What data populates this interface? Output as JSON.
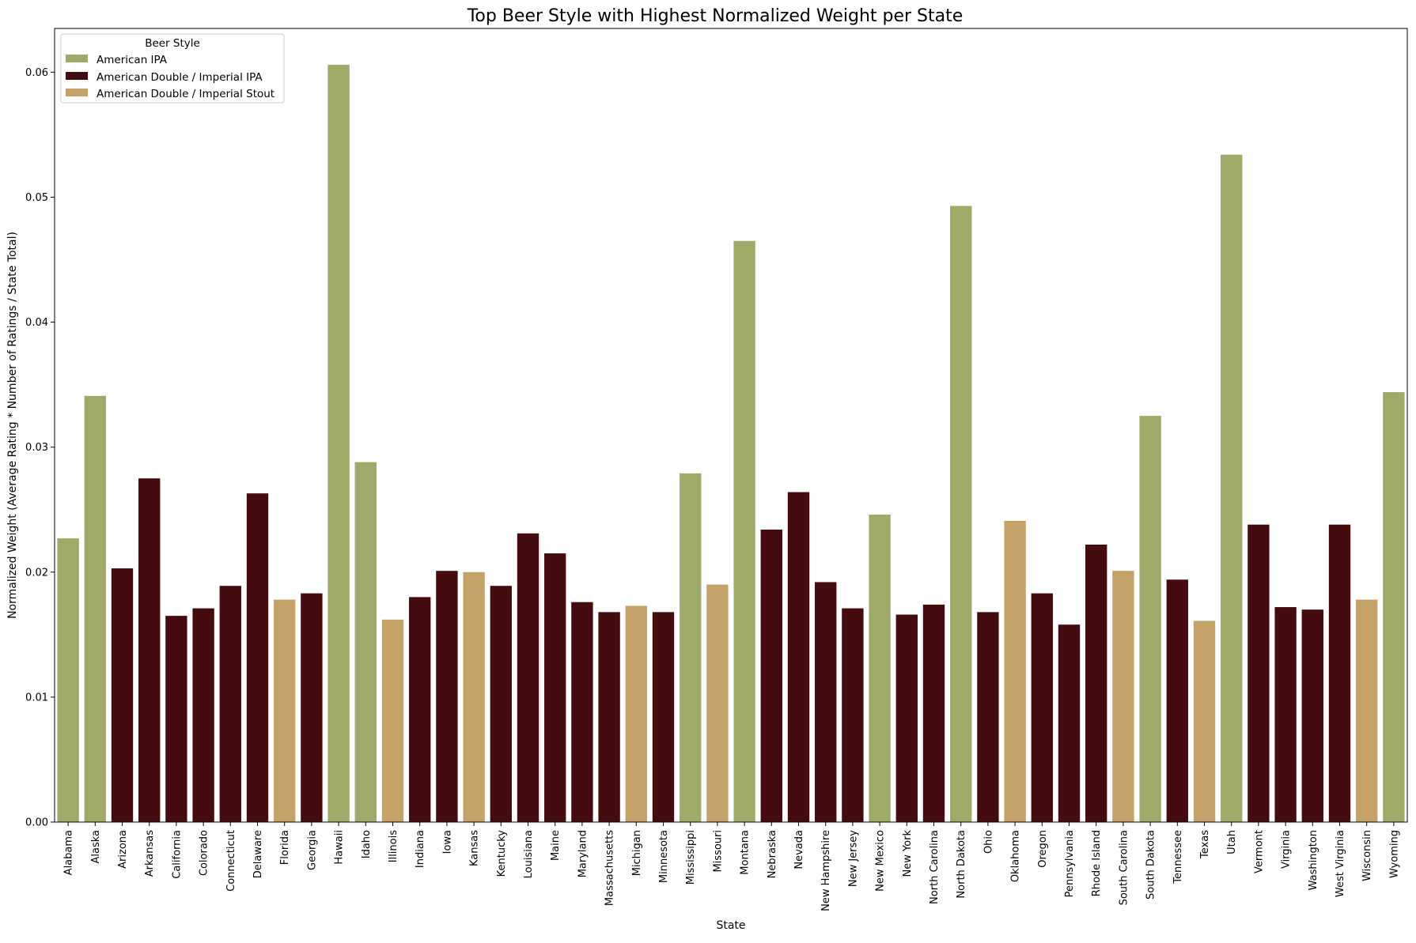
{
  "chart_data": {
    "type": "bar",
    "title": "Top Beer Style with Highest Normalized Weight per State",
    "xlabel": "State",
    "ylabel": "Normalized Weight (Average Rating * Number of Ratings / State Total)",
    "ylim": [
      0,
      0.0635
    ],
    "yticks": [
      "0.00",
      "0.01",
      "0.02",
      "0.03",
      "0.04",
      "0.05",
      "0.06"
    ],
    "grid": false,
    "legend": {
      "title": "Beer Style",
      "placement": "top-left",
      "entries": [
        {
          "name": "American IPA",
          "color": "#a0aa68"
        },
        {
          "name": "American Double / Imperial IPA",
          "color": "#440c0f"
        },
        {
          "name": "American Double / Imperial Stout",
          "color": "#c4a268"
        }
      ]
    },
    "categories": [
      "Alabama",
      "Alaska",
      "Arizona",
      "Arkansas",
      "California",
      "Colorado",
      "Connecticut",
      "Delaware",
      "Florida",
      "Georgia",
      "Hawaii",
      "Idaho",
      "Illinois",
      "Indiana",
      "Iowa",
      "Kansas",
      "Kentucky",
      "Louisiana",
      "Maine",
      "Maryland",
      "Massachusetts",
      "Michigan",
      "Minnesota",
      "Mississippi",
      "Missouri",
      "Montana",
      "Nebraska",
      "Nevada",
      "New Hampshire",
      "New Jersey",
      "New Mexico",
      "New York",
      "North Carolina",
      "North Dakota",
      "Ohio",
      "Oklahoma",
      "Oregon",
      "Pennsylvania",
      "Rhode Island",
      "South Carolina",
      "South Dakota",
      "Tennessee",
      "Texas",
      "Utah",
      "Vermont",
      "Virginia",
      "Washington",
      "West Virginia",
      "Wisconsin",
      "Wyoming"
    ],
    "values": [
      0.0227,
      0.0341,
      0.0203,
      0.0275,
      0.0165,
      0.0171,
      0.0189,
      0.0263,
      0.0178,
      0.0183,
      0.0606,
      0.0288,
      0.0162,
      0.018,
      0.0201,
      0.02,
      0.0189,
      0.0231,
      0.0215,
      0.0176,
      0.0168,
      0.0173,
      0.0168,
      0.0279,
      0.019,
      0.0465,
      0.0234,
      0.0264,
      0.0192,
      0.0171,
      0.0246,
      0.0166,
      0.0174,
      0.0493,
      0.0168,
      0.0241,
      0.0183,
      0.0158,
      0.0222,
      0.0201,
      0.0325,
      0.0194,
      0.0161,
      0.0534,
      0.0238,
      0.0172,
      0.017,
      0.0238,
      0.0178,
      0.0344
    ],
    "styles": [
      0,
      0,
      1,
      1,
      1,
      1,
      1,
      1,
      2,
      1,
      0,
      0,
      2,
      1,
      1,
      2,
      1,
      1,
      1,
      1,
      1,
      2,
      1,
      0,
      2,
      0,
      1,
      1,
      1,
      1,
      0,
      1,
      1,
      0,
      1,
      2,
      1,
      1,
      1,
      2,
      0,
      1,
      2,
      0,
      1,
      1,
      1,
      1,
      2,
      0
    ]
  }
}
